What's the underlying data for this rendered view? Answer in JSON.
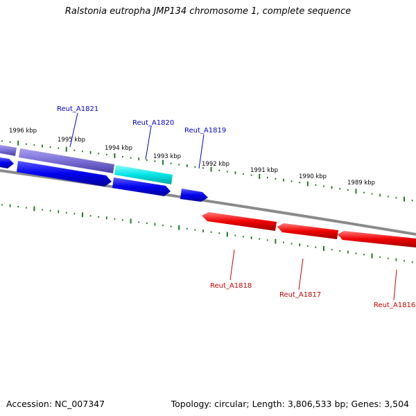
{
  "title": "Ralstonia eutropha JMP134 chromosome 1, complete sequence",
  "footer": {
    "accession": "Accession: NC_007347",
    "summary": "Topology: circular; Length: 3,806,533 bp; Genes: 3,504"
  },
  "colors": {
    "background": "#ffffff",
    "backbone": "#808080",
    "tick": "#1e7a1e",
    "forward_gene": "#0000ee",
    "forward_gene_faded": "#7b6fd6",
    "selected_gene": "#00e5e5",
    "reverse_gene": "#ee0000",
    "forward_label": "#0000cc",
    "reverse_label": "#cc0000"
  },
  "scale_labels": [
    "1996 kbp",
    "1995 kbp",
    "1994 kbp",
    "1993 kbp",
    "1992 kbp",
    "1991 kbp",
    "1990 kbp",
    "1989 kbp"
  ],
  "genes": [
    {
      "label": "Reut_A1821",
      "strand": "forward",
      "color": "forward_label"
    },
    {
      "label": "Reut_A1820",
      "strand": "forward",
      "color": "forward_label"
    },
    {
      "label": "Reut_A1819",
      "strand": "forward",
      "color": "forward_label"
    },
    {
      "label": "Reut_A1818",
      "strand": "reverse",
      "color": "reverse_label"
    },
    {
      "label": "Reut_A1817",
      "strand": "reverse",
      "color": "reverse_label"
    },
    {
      "label": "Reut_A1816",
      "strand": "reverse",
      "color": "reverse_label"
    }
  ]
}
